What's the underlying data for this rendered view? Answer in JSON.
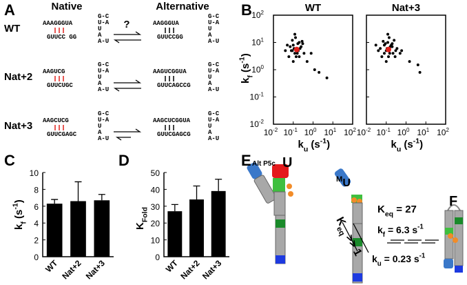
{
  "panel_labels": [
    "A",
    "B",
    "C",
    "D",
    "E"
  ],
  "panel_a": {
    "col_headers": [
      "Native",
      "Alternative"
    ],
    "question": "?",
    "rows": [
      {
        "label": "WT",
        "native": {
          "top": "AAAGGGUA",
          "bottom": "GUUCC GG",
          "stem": [
            "G-C",
            "U-A",
            "U",
            "A",
            "A-U"
          ]
        },
        "alt": {
          "top": "AAGGGUA",
          "bottom": "GUUCCGG",
          "stem": [
            "G-C",
            "U-A",
            "U",
            "A",
            "A-U"
          ]
        }
      },
      {
        "label": "Nat+2",
        "native": {
          "top": "AAGUCG",
          "bottom": "GUUCUGC",
          "stem": [
            "G-C",
            "U-A",
            "U",
            "A",
            "A-U"
          ]
        },
        "alt": {
          "top": "AAGUCGGUA",
          "bottom": "GUUCAGCCG",
          "stem": [
            "G-C",
            "U-A",
            "U",
            "A",
            "A-U"
          ]
        }
      },
      {
        "label": "Nat+3",
        "native": {
          "top": "AAGCUCG",
          "bottom": "GUUCGAGC",
          "stem": [
            "G-C",
            "U-A",
            "U",
            "A",
            "A-U"
          ]
        },
        "alt": {
          "top": "AAGCUCGGUA",
          "bottom": "GUUCGAGCG",
          "stem": [
            "G-C",
            "U-A",
            "U",
            "A",
            "A-U"
          ]
        }
      }
    ]
  },
  "chart_data": [
    {
      "type": "scatter",
      "title": "WT",
      "xlog": true,
      "ylog": true,
      "xlim": [
        0.01,
        100
      ],
      "ylim": [
        0.01,
        100
      ],
      "xticks": [
        {
          "value": 0.01,
          "label": "10",
          "exponent": "-2"
        },
        {
          "value": 0.1,
          "label": "10",
          "exponent": "-1"
        },
        {
          "value": 1,
          "label": "10",
          "exponent": "0"
        },
        {
          "value": 10,
          "label": "10",
          "exponent": "1"
        },
        {
          "value": 100,
          "label": "10",
          "exponent": "2"
        }
      ],
      "yticks": [
        {
          "value": 0.01,
          "label": "10",
          "exponent": "-2"
        },
        {
          "value": 0.1,
          "label": "10",
          "exponent": "-1"
        },
        {
          "value": 1,
          "label": "10",
          "exponent": "0"
        },
        {
          "value": 10,
          "label": "10",
          "exponent": "1"
        },
        {
          "value": 100,
          "label": "10",
          "exponent": "2"
        }
      ],
      "ytick_labels": true,
      "xlabel": [
        {
          "t": "k"
        },
        {
          "t": "u",
          "pos": "sub"
        },
        {
          "t": " (s"
        },
        {
          "t": "-1",
          "pos": "sup"
        },
        {
          "t": ")"
        }
      ],
      "ylabel": [
        {
          "t": "k"
        },
        {
          "t": "f",
          "pos": "sub"
        },
        {
          "t": " (s"
        },
        {
          "t": "-1",
          "pos": "sup"
        },
        {
          "t": ")"
        }
      ],
      "series": [
        {
          "color": "#000000",
          "x": [
            0.08,
            0.1,
            0.12,
            0.15,
            0.2,
            0.25,
            0.06,
            0.09,
            0.11,
            0.14,
            0.18,
            0.3,
            0.07,
            0.13,
            0.16,
            0.22,
            0.05,
            0.1,
            0.35,
            0.12,
            0.17,
            0.09,
            0.2,
            0.28,
            0.5,
            1.2,
            2,
            5,
            0.8,
            0.04
          ],
          "values": [
            5,
            8,
            4,
            6,
            10,
            7,
            3,
            12,
            6,
            3,
            5,
            9,
            7,
            15,
            4,
            6,
            8,
            2,
            4,
            20,
            9,
            5,
            3,
            11,
            2,
            1,
            0.8,
            0.5,
            4,
            5
          ]
        },
        {
          "color": "#e0201b",
          "x": [
            0.15
          ],
          "values": [
            5.5
          ]
        }
      ]
    },
    {
      "type": "scatter",
      "title": "Nat+3",
      "xlog": true,
      "ylog": true,
      "xlim": [
        0.01,
        100
      ],
      "ylim": [
        0.01,
        100
      ],
      "xticks": [
        {
          "value": 0.01,
          "label": "10",
          "exponent": "-2"
        },
        {
          "value": 0.1,
          "label": "10",
          "exponent": "-1"
        },
        {
          "value": 1,
          "label": "10",
          "exponent": "0"
        },
        {
          "value": 10,
          "label": "10",
          "exponent": "1"
        },
        {
          "value": 100,
          "label": "10",
          "exponent": "2"
        }
      ],
      "yticks": [
        0.01,
        0.1,
        1,
        10,
        100
      ],
      "ytick_labels": false,
      "xlabel": [
        {
          "t": "k"
        },
        {
          "t": "u",
          "pos": "sub"
        },
        {
          "t": " (s"
        },
        {
          "t": "-1",
          "pos": "sup"
        },
        {
          "t": ")"
        }
      ],
      "series": [
        {
          "color": "#000000",
          "x": [
            0.05,
            0.08,
            0.1,
            0.12,
            0.15,
            0.2,
            0.25,
            0.3,
            0.06,
            0.09,
            0.11,
            0.14,
            0.18,
            0.22,
            0.04,
            0.07,
            0.13,
            0.16,
            0.35,
            0.5,
            0.03,
            0.1,
            0.2,
            0.28,
            1.5,
            4,
            5,
            0.6,
            0.12,
            0.08
          ],
          "values": [
            6,
            8,
            5,
            10,
            4,
            7,
            12,
            5,
            3,
            9,
            6,
            15,
            8,
            4,
            5,
            11,
            3,
            7,
            6,
            4,
            8,
            2,
            9,
            3,
            2,
            1.5,
            0.8,
            5,
            20,
            4
          ]
        },
        {
          "color": "#e0201b",
          "x": [
            0.13
          ],
          "values": [
            5.5
          ]
        }
      ]
    },
    {
      "type": "bar",
      "categories": [
        "WT",
        "Nat+2",
        "Nat+3"
      ],
      "values": [
        6.3,
        6.6,
        6.7
      ],
      "errors": [
        0.5,
        2.3,
        0.7
      ],
      "color": "#000000",
      "ylim": [
        0,
        10
      ],
      "yticks": [
        0,
        2,
        4,
        6,
        8,
        10
      ],
      "ylabel": [
        {
          "t": "k"
        },
        {
          "t": "f",
          "pos": "sub"
        },
        {
          "t": " (s"
        },
        {
          "t": "-1",
          "pos": "sup"
        },
        {
          "t": ")"
        }
      ]
    },
    {
      "type": "bar",
      "categories": [
        "WT",
        "Nat+2",
        "Nat+3"
      ],
      "values": [
        27,
        34,
        39
      ],
      "errors": [
        4,
        8,
        7
      ],
      "color": "#000000",
      "ylim": [
        0,
        50
      ],
      "yticks": [
        0,
        10,
        20,
        30,
        40,
        50
      ],
      "ylabel": [
        {
          "t": "K"
        },
        {
          "t": "Fold",
          "pos": "sub"
        }
      ]
    }
  ],
  "panel_e": {
    "alt_label": "Alt P5c",
    "u_label": "U",
    "mu_label": [
      {
        "t": "M",
        "pos": "sup"
      },
      {
        "t": "U"
      }
    ],
    "keq_big": [
      {
        "t": "K"
      },
      {
        "t": "eq",
        "pos": "sub"
      },
      {
        "t": " >> 1"
      }
    ],
    "keq": [
      {
        "t": "K"
      },
      {
        "t": "eq",
        "pos": "sub"
      },
      {
        "t": " = 27"
      }
    ],
    "kf": [
      {
        "t": "k"
      },
      {
        "t": "f",
        "pos": "sub"
      },
      {
        "t": " = 6.3 s"
      },
      {
        "t": "-1",
        "pos": "sup"
      }
    ],
    "ku": [
      {
        "t": "k"
      },
      {
        "t": "u",
        "pos": "sub"
      },
      {
        "t": " = 0.23 s"
      },
      {
        "t": "-1",
        "pos": "sup"
      }
    ],
    "f_label": "F"
  }
}
